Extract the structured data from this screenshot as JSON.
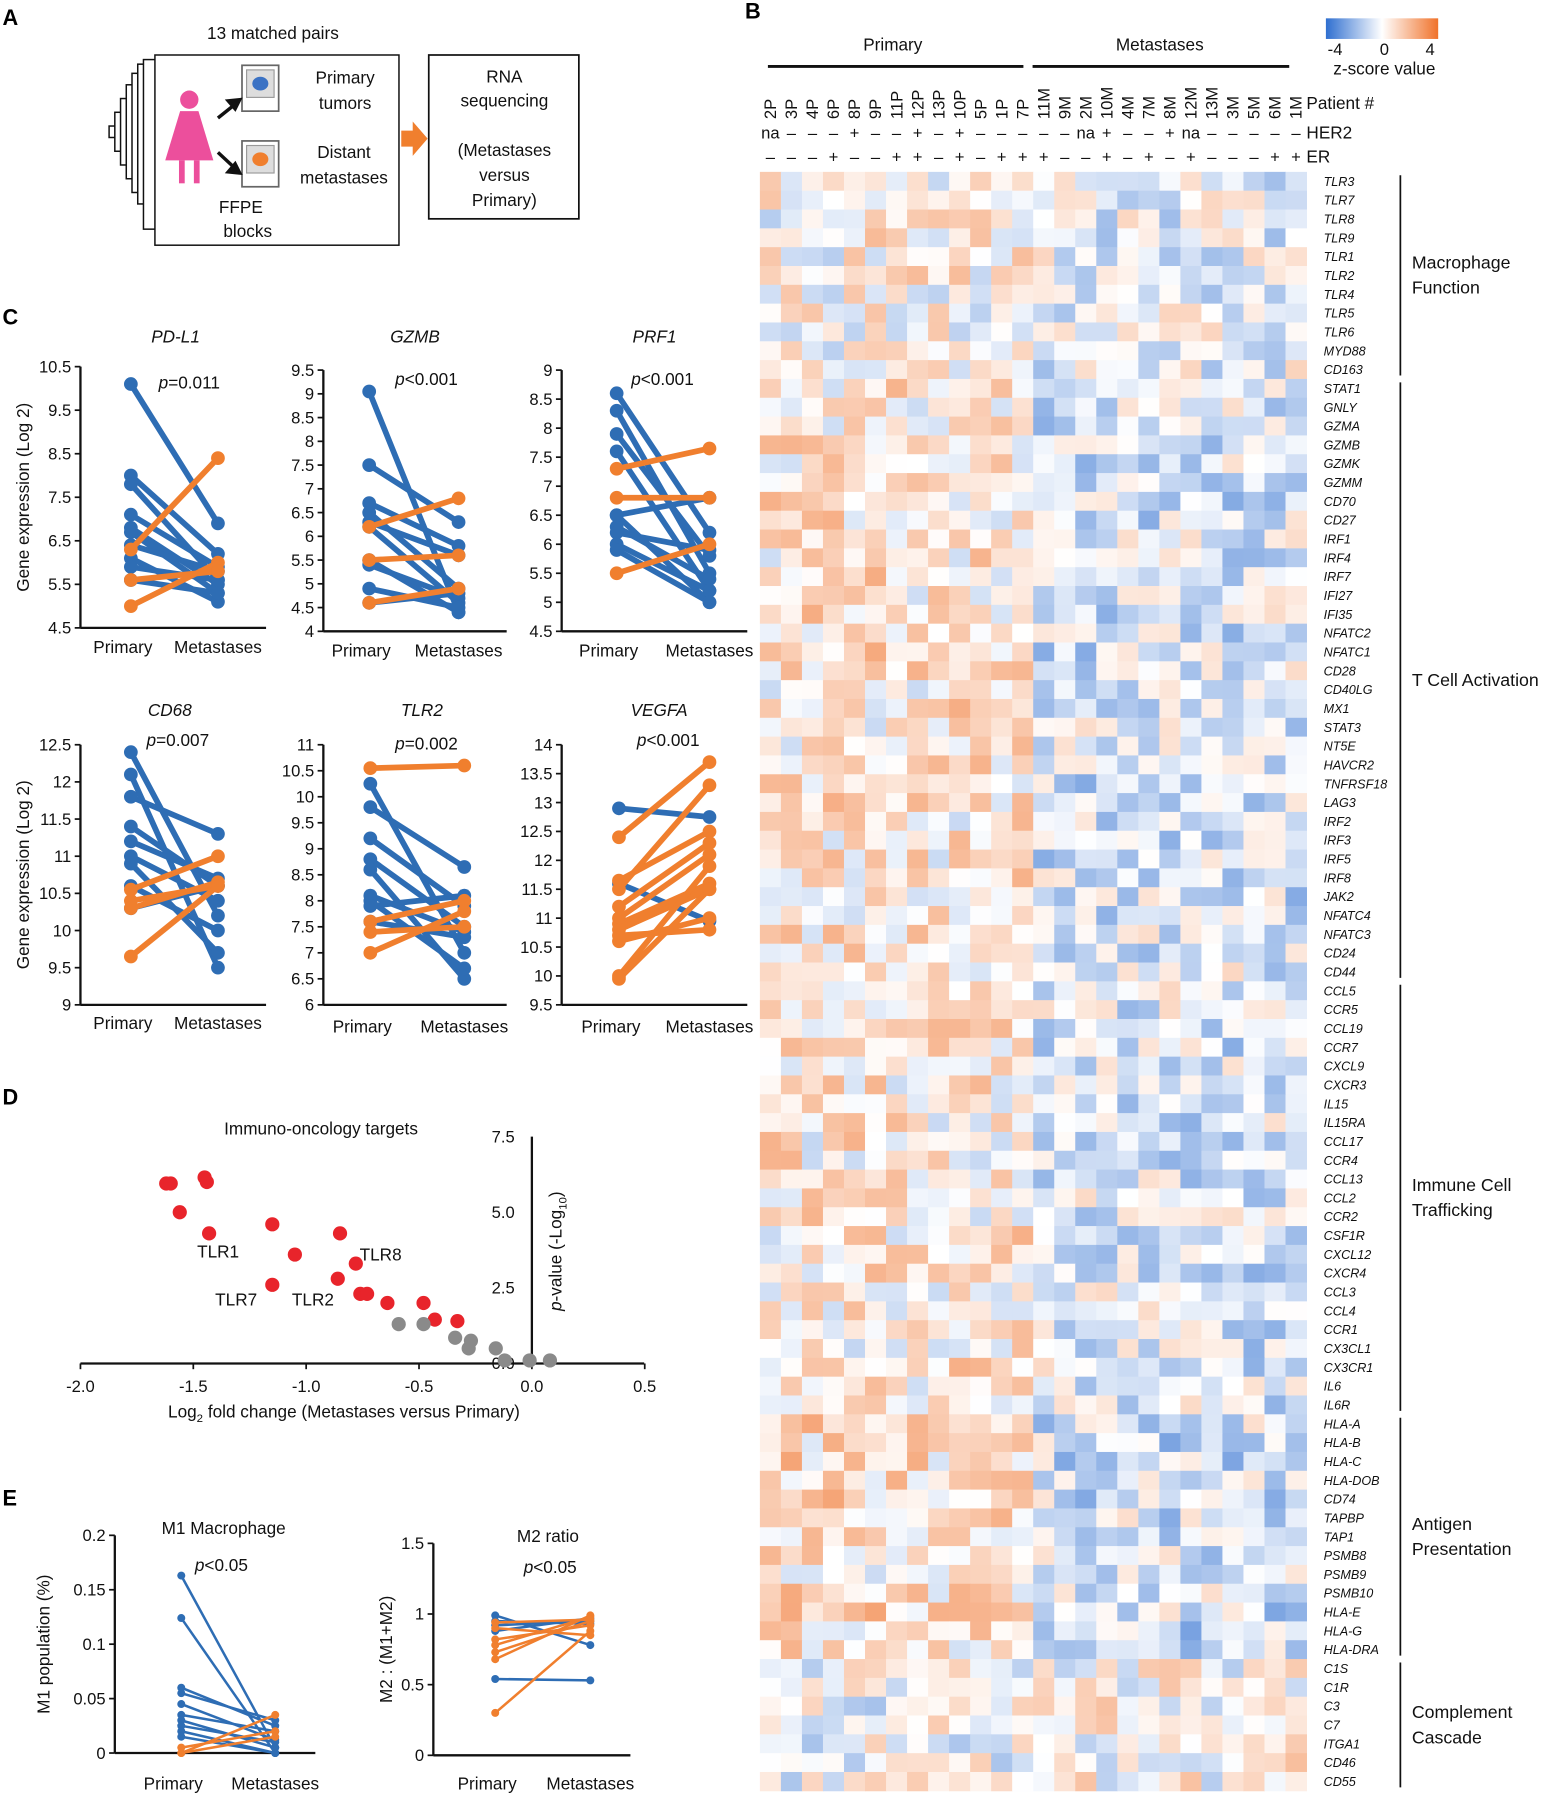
{
  "figure": {
    "panel_labels": [
      "A",
      "B",
      "C",
      "D",
      "E"
    ],
    "panel_a": {
      "title": "13 matched pairs",
      "primary": [
        "Primary",
        "tumors"
      ],
      "distant": [
        "Distant",
        "metastases"
      ],
      "ffpe": [
        "FFPE",
        "blocks"
      ],
      "rna": [
        "RNA",
        "sequencing",
        "(Metastases",
        "versus",
        "Primary)"
      ]
    },
    "colors": {
      "blue": "#2e6db4",
      "orange": "#f07f2e",
      "red": "#e8242b",
      "gray": "#8a8a8a",
      "heat_low": "#3a7bd5",
      "heat_mid": "#ffffff",
      "heat_high": "#f0722a",
      "woman": "#ec4f9c"
    }
  },
  "chart_data": [
    {
      "type": "heatmap",
      "group_headers": [
        "Primary",
        "Metastases"
      ],
      "row_headers": {
        "patient": "Patient #",
        "her2": "HER2",
        "er": "ER"
      },
      "columns": [
        "2P",
        "3P",
        "4P",
        "6P",
        "8P",
        "9P",
        "11P",
        "12P",
        "13P",
        "10P",
        "5P",
        "1P",
        "7P",
        "11M",
        "9M",
        "2M",
        "10M",
        "4M",
        "7M",
        "8M",
        "12M",
        "13M",
        "3M",
        "5M",
        "6M",
        "1M"
      ],
      "her2": [
        "na",
        "–",
        "–",
        "–",
        "+",
        "–",
        "–",
        "+",
        "–",
        "+",
        "–",
        "–",
        "–",
        "–",
        "–",
        "na",
        "+",
        "–",
        "–",
        "+",
        "na",
        "–",
        "–",
        "–",
        "–",
        "–"
      ],
      "er": [
        "–",
        "–",
        "–",
        "+",
        "–",
        "–",
        "+",
        "+",
        "–",
        "+",
        "–",
        "+",
        "+",
        "+",
        "–",
        "–",
        "+",
        "–",
        "+",
        "–",
        "+",
        "–",
        "–",
        "–",
        "+",
        "+"
      ],
      "legend": {
        "ticks": [
          "-4",
          "0",
          "4"
        ],
        "title": "z-score value",
        "range": [
          -4,
          4
        ]
      },
      "groups": [
        {
          "name": [
            "Macrophage",
            "Function"
          ],
          "genes": [
            "TLR3",
            "TLR7",
            "TLR8",
            "TLR9",
            "TLR1",
            "TLR2",
            "TLR4",
            "TLR5",
            "TLR6",
            "MYD88",
            "CD163"
          ]
        },
        {
          "name": [
            "T Cell Activation"
          ],
          "genes": [
            "STAT1",
            "GNLY",
            "GZMA",
            "GZMB",
            "GZMK",
            "GZMM",
            "CD70",
            "CD27",
            "IRF1",
            "IRF4",
            "IRF7",
            "IFI27",
            "IFI35",
            "NFATC2",
            "NFATC1",
            "CD28",
            "CD40LG",
            "MX1",
            "STAT3",
            "NT5E",
            "HAVCR2",
            "TNFRSF18",
            "LAG3",
            "IRF2",
            "IRF3",
            "IRF5",
            "IRF8",
            "JAK2",
            "NFATC4",
            "NFATC3",
            "CD24",
            "CD44"
          ]
        },
        {
          "name": [
            "Immune Cell",
            "Trafficking"
          ],
          "genes": [
            "CCL5",
            "CCR5",
            "CCL19",
            "CCR7",
            "CXCL9",
            "CXCR3",
            "IL15",
            "IL15RA",
            "CCL17",
            "CCR4",
            "CCL13",
            "CCL2",
            "CCR2",
            "CSF1R",
            "CXCL12",
            "CXCR4",
            "CCL3",
            "CCL4",
            "CCR1",
            "CX3CL1",
            "CX3CR1",
            "IL6",
            "IL6R"
          ]
        },
        {
          "name": [
            "Antigen",
            "Presentation"
          ],
          "genes": [
            "HLA-A",
            "HLA-B",
            "HLA-C",
            "HLA-DOB",
            "CD74",
            "TAPBP",
            "TAP1",
            "PSMB8",
            "PSMB9",
            "PSMB10",
            "HLA-E",
            "HLA-G",
            "HLA-DRA"
          ]
        },
        {
          "name": [
            "Complement",
            "Cascade"
          ],
          "genes": [
            "C1S",
            "C1R",
            "C3",
            "C7",
            "ITGA1",
            "CD46",
            "CD55"
          ]
        }
      ]
    },
    {
      "type": "line",
      "title": "PD-L1",
      "p_sym": "p",
      "p_val": "=0.011",
      "ylabel": "Gene expression (Log 2)",
      "categories": [
        "Primary",
        "Metastases"
      ],
      "ylim": [
        4.5,
        10.5
      ],
      "yticks": [
        "4.5",
        "5.5",
        "6.5",
        "7.5",
        "8.5",
        "9.5",
        "10.5"
      ],
      "pairs": [
        [
          10.1,
          6.9,
          "blue"
        ],
        [
          8.0,
          6.2,
          "blue"
        ],
        [
          7.8,
          5.6,
          "blue"
        ],
        [
          7.1,
          5.9,
          "blue"
        ],
        [
          6.8,
          5.5,
          "blue"
        ],
        [
          6.7,
          5.3,
          "blue"
        ],
        [
          6.4,
          5.8,
          "blue"
        ],
        [
          6.1,
          5.1,
          "blue"
        ],
        [
          5.9,
          5.6,
          "blue"
        ],
        [
          5.6,
          5.3,
          "blue"
        ],
        [
          6.3,
          8.4,
          "orange"
        ],
        [
          5.0,
          6.0,
          "orange"
        ],
        [
          5.6,
          5.8,
          "orange"
        ]
      ]
    },
    {
      "type": "line",
      "title": "GZMB",
      "p_sym": "p",
      "p_val": "<0.001",
      "ylabel": "",
      "categories": [
        "Primary",
        "Metastases"
      ],
      "ylim": [
        4,
        9.5
      ],
      "yticks": [
        "4",
        "4.5",
        "5",
        "5.5",
        "6",
        "6.5",
        "7",
        "7.5",
        "8",
        "8.5",
        "9",
        "9.5"
      ],
      "pairs": [
        [
          9.05,
          4.4,
          "blue"
        ],
        [
          7.5,
          6.3,
          "blue"
        ],
        [
          6.7,
          5.8,
          "blue"
        ],
        [
          6.5,
          4.9,
          "blue"
        ],
        [
          6.3,
          5.6,
          "blue"
        ],
        [
          6.2,
          4.6,
          "blue"
        ],
        [
          5.5,
          4.4,
          "blue"
        ],
        [
          5.4,
          4.7,
          "blue"
        ],
        [
          4.9,
          4.5,
          "blue"
        ],
        [
          4.6,
          4.8,
          "blue"
        ],
        [
          6.2,
          6.8,
          "orange"
        ],
        [
          5.5,
          5.6,
          "orange"
        ],
        [
          4.6,
          4.9,
          "orange"
        ]
      ]
    },
    {
      "type": "line",
      "title": "PRF1",
      "p_sym": "p",
      "p_val": "<0.001",
      "ylabel": "",
      "categories": [
        "Primary",
        "Metastases"
      ],
      "ylim": [
        4.5,
        9
      ],
      "yticks": [
        "4.5",
        "5",
        "5.5",
        "6",
        "6.5",
        "7",
        "7.5",
        "8",
        "8.5",
        "9"
      ],
      "pairs": [
        [
          8.6,
          6.2,
          "blue"
        ],
        [
          8.3,
          5.5,
          "blue"
        ],
        [
          7.9,
          5.8,
          "blue"
        ],
        [
          7.6,
          5.2,
          "blue"
        ],
        [
          6.5,
          5.0,
          "blue"
        ],
        [
          6.3,
          5.4,
          "blue"
        ],
        [
          6.2,
          5.9,
          "blue"
        ],
        [
          6.0,
          5.2,
          "blue"
        ],
        [
          5.9,
          5.0,
          "blue"
        ],
        [
          6.5,
          6.8,
          "blue"
        ],
        [
          7.3,
          7.65,
          "orange"
        ],
        [
          6.8,
          6.8,
          "orange"
        ],
        [
          5.5,
          6.0,
          "orange"
        ]
      ]
    },
    {
      "type": "line",
      "title": "CD68",
      "p_sym": "p",
      "p_val": "=0.007",
      "ylabel": "Gene expression (Log 2)",
      "categories": [
        "Primary",
        "Metastases"
      ],
      "ylim": [
        9,
        12.5
      ],
      "yticks": [
        "9",
        "9.5",
        "10",
        "10.5",
        "11",
        "11.5",
        "12",
        "12.5"
      ],
      "pairs": [
        [
          12.4,
          10.2,
          "blue"
        ],
        [
          12.1,
          9.5,
          "blue"
        ],
        [
          11.8,
          11.3,
          "blue"
        ],
        [
          11.4,
          10.6,
          "blue"
        ],
        [
          11.2,
          10.7,
          "blue"
        ],
        [
          11.0,
          10.4,
          "blue"
        ],
        [
          10.9,
          9.7,
          "blue"
        ],
        [
          10.6,
          10.0,
          "blue"
        ],
        [
          10.3,
          10.6,
          "blue"
        ],
        [
          10.55,
          11.0,
          "orange"
        ],
        [
          10.4,
          10.6,
          "orange"
        ],
        [
          10.3,
          10.65,
          "orange"
        ],
        [
          9.65,
          10.6,
          "orange"
        ]
      ]
    },
    {
      "type": "line",
      "title": "TLR2",
      "p_sym": "p",
      "p_val": "=0.002",
      "ylabel": "",
      "categories": [
        "Primary",
        "Metastases"
      ],
      "ylim": [
        6,
        11
      ],
      "yticks": [
        "6",
        "6.5",
        "7",
        "7.5",
        "8",
        "8.5",
        "9",
        "9.5",
        "10",
        "10.5",
        "11"
      ],
      "pairs": [
        [
          10.25,
          7.0,
          "blue"
        ],
        [
          9.8,
          8.65,
          "blue"
        ],
        [
          9.2,
          7.9,
          "blue"
        ],
        [
          8.8,
          7.5,
          "blue"
        ],
        [
          8.6,
          6.5,
          "blue"
        ],
        [
          8.1,
          7.4,
          "blue"
        ],
        [
          8.0,
          6.7,
          "blue"
        ],
        [
          7.9,
          8.1,
          "blue"
        ],
        [
          7.6,
          7.3,
          "blue"
        ],
        [
          10.55,
          10.6,
          "orange"
        ],
        [
          7.6,
          8.0,
          "orange"
        ],
        [
          7.4,
          7.5,
          "orange"
        ],
        [
          7.0,
          7.8,
          "orange"
        ]
      ]
    },
    {
      "type": "line",
      "title": "VEGFA",
      "p_sym": "p",
      "p_val": "<0.001",
      "ylabel": "",
      "categories": [
        "Primary",
        "Metastases"
      ],
      "ylim": [
        9.5,
        14
      ],
      "yticks": [
        "9.5",
        "10",
        "10.5",
        "11",
        "11.5",
        "12",
        "12.5",
        "13",
        "13.5",
        "14"
      ],
      "pairs": [
        [
          12.9,
          12.75,
          "blue"
        ],
        [
          11.6,
          10.95,
          "blue"
        ],
        [
          12.4,
          13.7,
          "orange"
        ],
        [
          11.5,
          13.3,
          "orange"
        ],
        [
          11.65,
          12.5,
          "orange"
        ],
        [
          11.2,
          12.3,
          "orange"
        ],
        [
          11.0,
          12.1,
          "orange"
        ],
        [
          10.9,
          11.6,
          "orange"
        ],
        [
          10.8,
          11.5,
          "orange"
        ],
        [
          10.6,
          11.0,
          "orange"
        ],
        [
          10.0,
          11.9,
          "orange"
        ],
        [
          9.95,
          11.5,
          "orange"
        ],
        [
          10.7,
          10.8,
          "orange"
        ]
      ]
    },
    {
      "type": "scatter",
      "title": "Immuno-oncology targets",
      "xlabel": {
        "pre": "Log",
        "sub": "2",
        "post": " fold change (Metastases versus  Primary)"
      },
      "ylabel": {
        "pre": "p",
        "mid": "-value (-Log",
        "sub": "10",
        "post": ")"
      },
      "xlim": [
        -2,
        0.5
      ],
      "ylim": [
        0,
        7.5
      ],
      "xticks": [
        "-2.0",
        "-1.5",
        "-1.0",
        "-0.5",
        "0.0",
        "0.5"
      ],
      "yticks": [
        "0.0",
        "2.5",
        "5.0",
        "7.5"
      ],
      "points": [
        [
          -1.62,
          5.95,
          "significant"
        ],
        [
          -1.6,
          5.95,
          "significant"
        ],
        [
          -1.45,
          6.15,
          "significant"
        ],
        [
          -1.44,
          6.0,
          "significant"
        ],
        [
          -1.56,
          5.0,
          "significant"
        ],
        [
          -1.43,
          4.3,
          "significant"
        ],
        [
          -1.15,
          4.6,
          "significant"
        ],
        [
          -1.05,
          3.6,
          "significant"
        ],
        [
          -1.15,
          2.6,
          "significant"
        ],
        [
          -0.85,
          4.3,
          "significant"
        ],
        [
          -0.78,
          3.3,
          "significant"
        ],
        [
          -0.86,
          2.8,
          "significant"
        ],
        [
          -0.76,
          2.3,
          "significant"
        ],
        [
          -0.73,
          2.3,
          "significant"
        ],
        [
          -0.64,
          2.0,
          "significant"
        ],
        [
          -0.48,
          2.0,
          "significant"
        ],
        [
          -0.43,
          1.45,
          "significant"
        ],
        [
          -0.33,
          1.4,
          "significant"
        ],
        [
          -0.59,
          1.3,
          "ns"
        ],
        [
          -0.48,
          1.3,
          "ns"
        ],
        [
          -0.34,
          0.85,
          "ns"
        ],
        [
          -0.27,
          0.75,
          "ns"
        ],
        [
          -0.28,
          0.5,
          "ns"
        ],
        [
          -0.16,
          0.5,
          "ns"
        ],
        [
          -0.12,
          0.1,
          "ns"
        ],
        [
          -0.01,
          0.1,
          "ns"
        ],
        [
          0.08,
          0.1,
          "ns"
        ]
      ],
      "annotations": [
        {
          "text": "TLR1",
          "x": -1.39,
          "y": 3.7
        },
        {
          "text": "TLR8",
          "x": -0.67,
          "y": 3.6
        },
        {
          "text": "TLR7",
          "x": -1.31,
          "y": 2.1
        },
        {
          "text": "TLR2",
          "x": -0.97,
          "y": 2.1
        }
      ]
    },
    {
      "type": "line",
      "title": "M1 Macrophage",
      "p_sym": "p",
      "p_val": "<0.05",
      "ylabel": "M1 population (%)",
      "categories": [
        "Primary",
        "Metastases"
      ],
      "ylim": [
        0,
        0.2
      ],
      "yticks": [
        "0",
        "0.05",
        "0.1",
        "0.15",
        "0.2"
      ],
      "pairs": [
        [
          0.163,
          0.005,
          "blue"
        ],
        [
          0.124,
          0.0,
          "blue"
        ],
        [
          0.06,
          0.025,
          "blue"
        ],
        [
          0.055,
          0.03,
          "blue"
        ],
        [
          0.045,
          0.012,
          "blue"
        ],
        [
          0.035,
          0.02,
          "blue"
        ],
        [
          0.03,
          0.005,
          "blue"
        ],
        [
          0.025,
          0.01,
          "blue"
        ],
        [
          0.02,
          0.0,
          "blue"
        ],
        [
          0.015,
          0.0,
          "blue"
        ],
        [
          0.0,
          0.035,
          "orange"
        ],
        [
          0.005,
          0.02,
          "orange"
        ],
        [
          0.0,
          0.015,
          "orange"
        ]
      ]
    },
    {
      "type": "line",
      "title": "M2 ratio",
      "p_sym": "p",
      "p_val": "<0.05",
      "ylabel": "M2 : (M1+M2)",
      "categories": [
        "Primary",
        "Metastases"
      ],
      "ylim": [
        0,
        1.5
      ],
      "yticks": [
        "0",
        "0.5",
        "1",
        "1.5"
      ],
      "pairs": [
        [
          0.99,
          0.78,
          "blue"
        ],
        [
          0.95,
          0.93,
          "blue"
        ],
        [
          0.92,
          0.95,
          "blue"
        ],
        [
          0.88,
          0.97,
          "blue"
        ],
        [
          0.54,
          0.53,
          "blue"
        ],
        [
          0.3,
          0.88,
          "orange"
        ],
        [
          0.68,
          0.99,
          "orange"
        ],
        [
          0.73,
          0.95,
          "orange"
        ],
        [
          0.78,
          0.98,
          "orange"
        ],
        [
          0.82,
          0.92,
          "orange"
        ],
        [
          0.9,
          0.85,
          "orange"
        ],
        [
          0.94,
          0.96,
          "orange"
        ]
      ]
    }
  ]
}
